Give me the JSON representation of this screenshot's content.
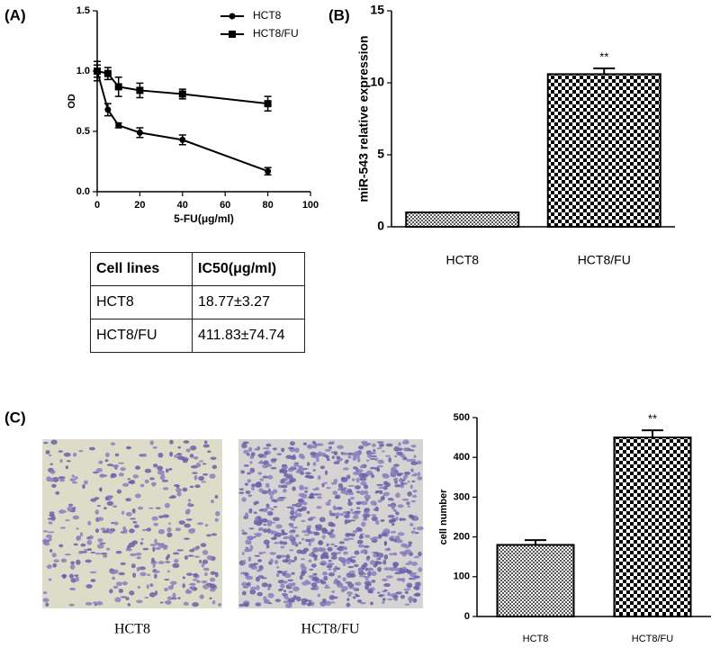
{
  "chart_data": [
    {
      "type": "line",
      "panel": "(A)",
      "xlabel": "5-FU(μg/ml)",
      "ylabel": "OD",
      "xlim": [
        0,
        100
      ],
      "xticks": [
        0,
        20,
        40,
        60,
        80,
        100
      ],
      "ylim": [
        0,
        1.5
      ],
      "yticks": [
        {
          "value": 0,
          "label": "0.0"
        },
        0.5,
        {
          "value": 1,
          "label": "1.0"
        },
        1.5
      ],
      "legend": "upper right",
      "series": [
        {
          "name": "HCT8",
          "color": "#000000",
          "marker": "circle",
          "x": [
            0,
            5,
            10,
            20,
            40,
            80
          ],
          "values": [
            1.0,
            0.68,
            0.55,
            0.49,
            0.43,
            0.17
          ],
          "errors": [
            0.05,
            0.05,
            0.02,
            0.04,
            0.04,
            0.03
          ]
        },
        {
          "name": "HCT8/FU",
          "color": "#000000",
          "marker": "square",
          "x": [
            0,
            5,
            10,
            20,
            40,
            80
          ],
          "values": [
            1.0,
            0.98,
            0.87,
            0.84,
            0.81,
            0.73
          ],
          "errors": [
            0.08,
            0.05,
            0.08,
            0.06,
            0.04,
            0.06
          ]
        }
      ]
    },
    {
      "type": "bar",
      "panel": "(B)",
      "ylabel": "miR-543 relative expression",
      "categories": [
        "HCT8",
        "HCT8/FU"
      ],
      "values": [
        1.0,
        10.6
      ],
      "errors": [
        0,
        0.4
      ],
      "color": "#000000",
      "ylim": [
        0,
        15
      ],
      "yticks": [
        0,
        5,
        10,
        15
      ],
      "annotations": [
        {
          "text": "**",
          "category": "HCT8/FU"
        }
      ]
    },
    {
      "type": "bar",
      "panel": "(C)",
      "ylabel": "cell number",
      "categories": [
        "HCT8",
        "HCT8/FU"
      ],
      "values": [
        180,
        450
      ],
      "errors": [
        12,
        18
      ],
      "color": "#000000",
      "ylim": [
        0,
        500
      ],
      "yticks": [
        0,
        100,
        200,
        300,
        400,
        500
      ],
      "annotations": [
        {
          "text": "**",
          "category": "HCT8/FU"
        }
      ]
    }
  ],
  "table": {
    "header": [
      "Cell lines",
      "IC50(μg/ml)"
    ],
    "rows": [
      [
        "HCT8",
        "18.77±3.27"
      ],
      [
        "HCT8/FU",
        "411.83±74.74"
      ]
    ]
  },
  "images": [
    {
      "caption": "HCT8"
    },
    {
      "caption": "HCT8/FU"
    }
  ]
}
